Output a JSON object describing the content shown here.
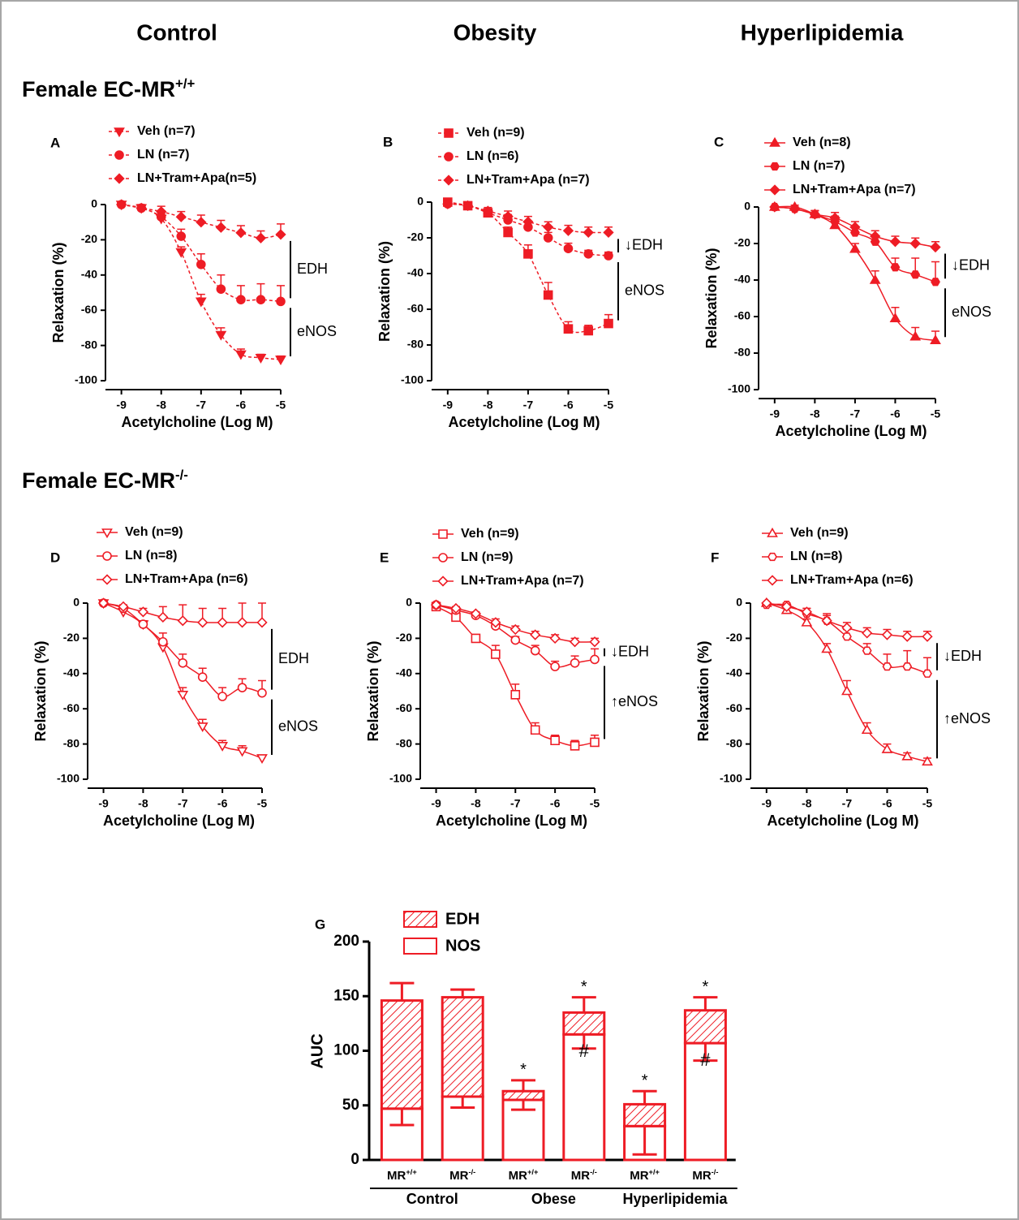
{
  "column_titles": [
    "Control",
    "Obesity",
    "Hyperlipidemia"
  ],
  "row_titles": [
    "Female EC-MR+/+",
    "Female EC-MR-/-"
  ],
  "chart_data": [
    {
      "type": "line",
      "label": "A",
      "x": [
        -9,
        -8.5,
        -8,
        -7.5,
        -7,
        -6.5,
        -6,
        -5.5,
        -5
      ],
      "xlim": [
        -9.4,
        -5
      ],
      "xticks": [
        -9,
        -8,
        -7,
        -6,
        -5
      ],
      "ylim": [
        -100,
        0
      ],
      "yticks": [
        0,
        -20,
        -40,
        -60,
        -80,
        -100
      ],
      "xlabel": "Acetylcholine (Log M)",
      "ylabel": "Relaxation (%)",
      "line_style": "dashed",
      "series": [
        {
          "name": "Veh (n=7)",
          "color": "#ee1c25",
          "marker": "triangle-down",
          "filled": true,
          "values": [
            0,
            -2,
            -8,
            -27,
            -55,
            -74,
            -85,
            -87,
            -88
          ],
          "errors": [
            0,
            1,
            2,
            3,
            4,
            4,
            3,
            2,
            2
          ]
        },
        {
          "name": "LN (n=7)",
          "color": "#ee1c25",
          "marker": "circle",
          "filled": true,
          "values": [
            0,
            -2,
            -7,
            -18,
            -34,
            -48,
            -54,
            -54,
            -55
          ],
          "errors": [
            0,
            1,
            2,
            4,
            6,
            8,
            8,
            9,
            9
          ]
        },
        {
          "name": "LN+Tram+Apa(n=5)",
          "color": "#ee1c25",
          "marker": "diamond",
          "filled": true,
          "values": [
            0,
            -2,
            -4,
            -7,
            -10,
            -13,
            -16,
            -19,
            -17
          ],
          "errors": [
            0,
            2,
            3,
            3,
            4,
            4,
            4,
            4,
            6
          ]
        }
      ],
      "annotations": [
        "EDH",
        "eNOS"
      ]
    },
    {
      "type": "line",
      "label": "B",
      "x": [
        -9,
        -8.5,
        -8,
        -7.5,
        -7,
        -6.5,
        -6,
        -5.5,
        -5
      ],
      "xlim": [
        -9.4,
        -5
      ],
      "xticks": [
        -9,
        -8,
        -7,
        -6,
        -5
      ],
      "ylim": [
        -100,
        0
      ],
      "yticks": [
        0,
        -20,
        -40,
        -60,
        -80,
        -100
      ],
      "xlabel": "Acetylcholine (Log M)",
      "ylabel": "Relaxation (%)",
      "line_style": "dashed",
      "series": [
        {
          "name": "Veh (n=9)",
          "color": "#ee1c25",
          "marker": "square",
          "filled": true,
          "values": [
            0,
            -2,
            -6,
            -17,
            -29,
            -52,
            -71,
            -72,
            -68
          ],
          "errors": [
            0,
            1,
            2,
            3,
            5,
            7,
            4,
            3,
            5
          ]
        },
        {
          "name": "LN (n=6)",
          "color": "#ee1c25",
          "marker": "circle",
          "filled": true,
          "values": [
            -1,
            -2,
            -6,
            -10,
            -14,
            -20,
            -26,
            -29,
            -30
          ],
          "errors": [
            0,
            1,
            2,
            3,
            3,
            3,
            3,
            2,
            2
          ]
        },
        {
          "name": "LN+Tram+Apa (n=7)",
          "color": "#ee1c25",
          "marker": "diamond",
          "filled": true,
          "values": [
            -1,
            -2,
            -5,
            -8,
            -11,
            -14,
            -16,
            -17,
            -17
          ],
          "errors": [
            0,
            1,
            2,
            3,
            3,
            3,
            3,
            3,
            3
          ]
        }
      ],
      "annotations": [
        "↓EDH",
        "eNOS"
      ]
    },
    {
      "type": "line",
      "label": "C",
      "x": [
        -9,
        -8.5,
        -8,
        -7.5,
        -7,
        -6.5,
        -6,
        -5.5,
        -5
      ],
      "xlim": [
        -9.4,
        -5
      ],
      "xticks": [
        -9,
        -8,
        -7,
        -6,
        -5
      ],
      "ylim": [
        -100,
        0
      ],
      "yticks": [
        0,
        -20,
        -40,
        -60,
        -80,
        -100
      ],
      "xlabel": "Acetylcholine (Log M)",
      "ylabel": "Relaxation (%)",
      "line_style": "solid",
      "series": [
        {
          "name": "Veh (n=8)",
          "color": "#ee1c25",
          "marker": "triangle-up",
          "filled": true,
          "values": [
            0,
            0,
            -4,
            -10,
            -23,
            -40,
            -61,
            -71,
            -73
          ],
          "errors": [
            0,
            1,
            2,
            2,
            3,
            5,
            6,
            5,
            5
          ]
        },
        {
          "name": "LN (n=7)",
          "color": "#ee1c25",
          "marker": "hexagon",
          "filled": true,
          "values": [
            0,
            -1,
            -4,
            -8,
            -14,
            -19,
            -33,
            -37,
            -41
          ],
          "errors": [
            0,
            1,
            2,
            3,
            3,
            3,
            5,
            9,
            11
          ]
        },
        {
          "name": "LN+Tram+Apa (n=7)",
          "color": "#ee1c25",
          "marker": "diamond",
          "filled": true,
          "values": [
            0,
            -1,
            -4,
            -6,
            -11,
            -16,
            -19,
            -20,
            -22
          ],
          "errors": [
            0,
            1,
            2,
            3,
            3,
            3,
            3,
            3,
            3
          ]
        }
      ],
      "annotations": [
        "↓EDH",
        "eNOS"
      ]
    },
    {
      "type": "line",
      "label": "D",
      "x": [
        -9,
        -8.5,
        -8,
        -7.5,
        -7,
        -6.5,
        -6,
        -5.5,
        -5
      ],
      "xlim": [
        -9.4,
        -5
      ],
      "xticks": [
        -9,
        -8,
        -7,
        -6,
        -5
      ],
      "ylim": [
        -100,
        0
      ],
      "yticks": [
        0,
        -20,
        -40,
        -60,
        -80,
        -100
      ],
      "xlabel": "Acetylcholine (Log M)",
      "ylabel": "Relaxation (%)",
      "line_style": "solid",
      "series": [
        {
          "name": "Veh (n=9)",
          "color": "#ee1c25",
          "marker": "triangle-down",
          "filled": false,
          "values": [
            0,
            -5,
            -12,
            -25,
            -52,
            -70,
            -81,
            -84,
            -88
          ],
          "errors": [
            0,
            1,
            2,
            3,
            4,
            4,
            3,
            3,
            1
          ]
        },
        {
          "name": "LN (n=8)",
          "color": "#ee1c25",
          "marker": "circle",
          "filled": false,
          "values": [
            0,
            -3,
            -12,
            -22,
            -34,
            -42,
            -53,
            -48,
            -51
          ],
          "errors": [
            0,
            1,
            2,
            5,
            5,
            5,
            5,
            5,
            7
          ]
        },
        {
          "name": "LN+Tram+Apa (n=6)",
          "color": "#ee1c25",
          "marker": "diamond",
          "filled": false,
          "values": [
            0,
            -2,
            -5,
            -8,
            -10,
            -11,
            -11,
            -11,
            -11
          ],
          "errors": [
            0,
            1,
            2,
            6,
            9,
            8,
            8,
            11,
            11
          ]
        }
      ],
      "annotations": [
        "EDH",
        "eNOS"
      ]
    },
    {
      "type": "line",
      "label": "E",
      "x": [
        -9,
        -8.5,
        -8,
        -7.5,
        -7,
        -6.5,
        -6,
        -5.5,
        -5
      ],
      "xlim": [
        -9.4,
        -5
      ],
      "xticks": [
        -9,
        -8,
        -7,
        -6,
        -5
      ],
      "ylim": [
        -100,
        0
      ],
      "yticks": [
        0,
        -20,
        -40,
        -60,
        -80,
        -100
      ],
      "xlabel": "Acetylcholine (Log M)",
      "ylabel": "Relaxation (%)",
      "line_style": "solid",
      "series": [
        {
          "name": "Veh (n=9)",
          "color": "#ee1c25",
          "marker": "square",
          "filled": false,
          "values": [
            -2,
            -8,
            -20,
            -29,
            -52,
            -72,
            -78,
            -81,
            -79
          ],
          "errors": [
            1,
            1,
            2,
            5,
            6,
            4,
            3,
            3,
            4
          ]
        },
        {
          "name": "LN (n=9)",
          "color": "#ee1c25",
          "marker": "circle",
          "filled": false,
          "values": [
            -1,
            -4,
            -7,
            -13,
            -21,
            -27,
            -36,
            -34,
            -32
          ],
          "errors": [
            0,
            1,
            1,
            2,
            2,
            3,
            3,
            4,
            6
          ]
        },
        {
          "name": "LN+Tram+Apa (n=7)",
          "color": "#ee1c25",
          "marker": "diamond",
          "filled": false,
          "values": [
            -1,
            -3,
            -6,
            -11,
            -15,
            -18,
            -20,
            -22,
            -22
          ],
          "errors": [
            0,
            1,
            1,
            2,
            2,
            2,
            2,
            2,
            2
          ]
        }
      ],
      "annotations": [
        "↓EDH",
        "↑eNOS"
      ]
    },
    {
      "type": "line",
      "label": "F",
      "x": [
        -9,
        -8.5,
        -8,
        -7.5,
        -7,
        -6.5,
        -6,
        -5.5,
        -5
      ],
      "xlim": [
        -9.4,
        -5
      ],
      "xticks": [
        -9,
        -8,
        -7,
        -6,
        -5
      ],
      "ylim": [
        -100,
        0
      ],
      "yticks": [
        0,
        -20,
        -40,
        -60,
        -80,
        -100
      ],
      "xlabel": "Acetylcholine (Log M)",
      "ylabel": "Relaxation (%)",
      "line_style": "solid",
      "series": [
        {
          "name": "Veh (n=9)",
          "color": "#ee1c25",
          "marker": "triangle-up",
          "filled": false,
          "values": [
            0,
            -4,
            -11,
            -26,
            -50,
            -72,
            -83,
            -87,
            -90
          ],
          "errors": [
            0,
            1,
            2,
            3,
            6,
            4,
            3,
            2,
            2
          ]
        },
        {
          "name": "LN (n=8)",
          "color": "#ee1c25",
          "marker": "hexagon",
          "filled": false,
          "values": [
            -1,
            -1,
            -6,
            -10,
            -19,
            -27,
            -36,
            -36,
            -40
          ],
          "errors": [
            0,
            1,
            3,
            4,
            4,
            4,
            7,
            9,
            9
          ]
        },
        {
          "name": "LN+Tram+Apa (n=6)",
          "color": "#ee1c25",
          "marker": "diamond",
          "filled": false,
          "values": [
            0,
            -2,
            -5,
            -10,
            -14,
            -17,
            -18,
            -19,
            -19
          ],
          "errors": [
            0,
            1,
            2,
            3,
            3,
            3,
            3,
            3,
            3
          ]
        }
      ],
      "annotations": [
        "↓EDH",
        "↑eNOS"
      ]
    },
    {
      "type": "bar",
      "stacked": true,
      "label": "G",
      "categories": [
        "MR+/+",
        "MR-/-",
        "MR+/+",
        "MR-/-",
        "MR+/+",
        "MR-/-"
      ],
      "groups": [
        "Control",
        "Obese",
        "Hyperlipidemia"
      ],
      "ylabel": "AUC",
      "ylim": [
        0,
        200
      ],
      "yticks": [
        0,
        50,
        100,
        150,
        200
      ],
      "series": [
        {
          "name": "NOS",
          "color": "#ee1c25",
          "fill": "open",
          "values": [
            47,
            58,
            55,
            115,
            31,
            107
          ],
          "errors": [
            15,
            10,
            9,
            13,
            26,
            16
          ]
        },
        {
          "name": "EDH",
          "color": "#ee1c25",
          "fill": "hatch",
          "values": [
            99,
            91,
            8,
            20,
            20,
            30
          ],
          "errors": [
            16,
            7,
            10,
            14,
            12,
            12
          ]
        }
      ],
      "top_labels": [
        null,
        null,
        "*",
        "*",
        "*",
        "*"
      ],
      "inner_labels": [
        null,
        null,
        null,
        "#",
        null,
        "#"
      ]
    }
  ]
}
